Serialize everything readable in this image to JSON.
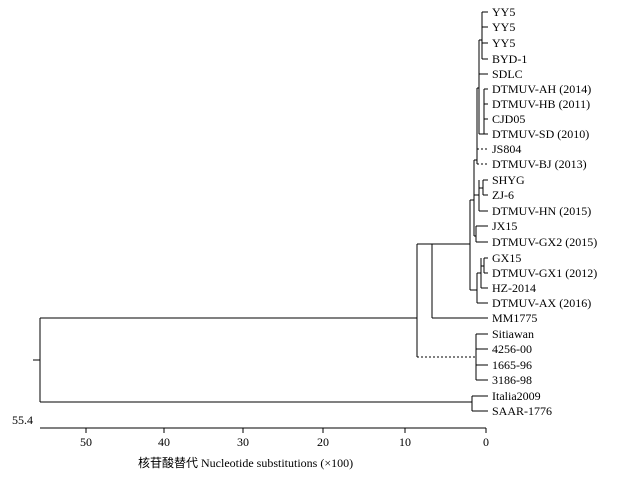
{
  "tree": {
    "leaves": [
      "YY5",
      "YY5",
      "YY5",
      "BYD-1",
      "SDLC",
      "DTMUV-AH (2014)",
      "DTMUV-HB (2011)",
      "CJD05",
      "DTMUV-SD (2010)",
      "JS804",
      "DTMUV-BJ (2013)",
      "SHYG",
      "ZJ-6",
      "DTMUV-HN (2015)",
      "JX15",
      "DTMUV-GX2 (2015)",
      "GX15",
      "DTMUV-GX1 (2012)",
      "HZ-2014",
      "DTMUV-AX (2016)",
      "MM1775",
      "Sitiawan",
      "4256-00",
      "1665-96",
      "3186-98",
      "Italia2009",
      "SAAR-1776"
    ],
    "root_height": "55.4"
  },
  "axis": {
    "ticks": [
      "50",
      "40",
      "30",
      "20",
      "10",
      "0"
    ],
    "title": "核苷酸替代 Nucleotide substitutions (×100)"
  }
}
